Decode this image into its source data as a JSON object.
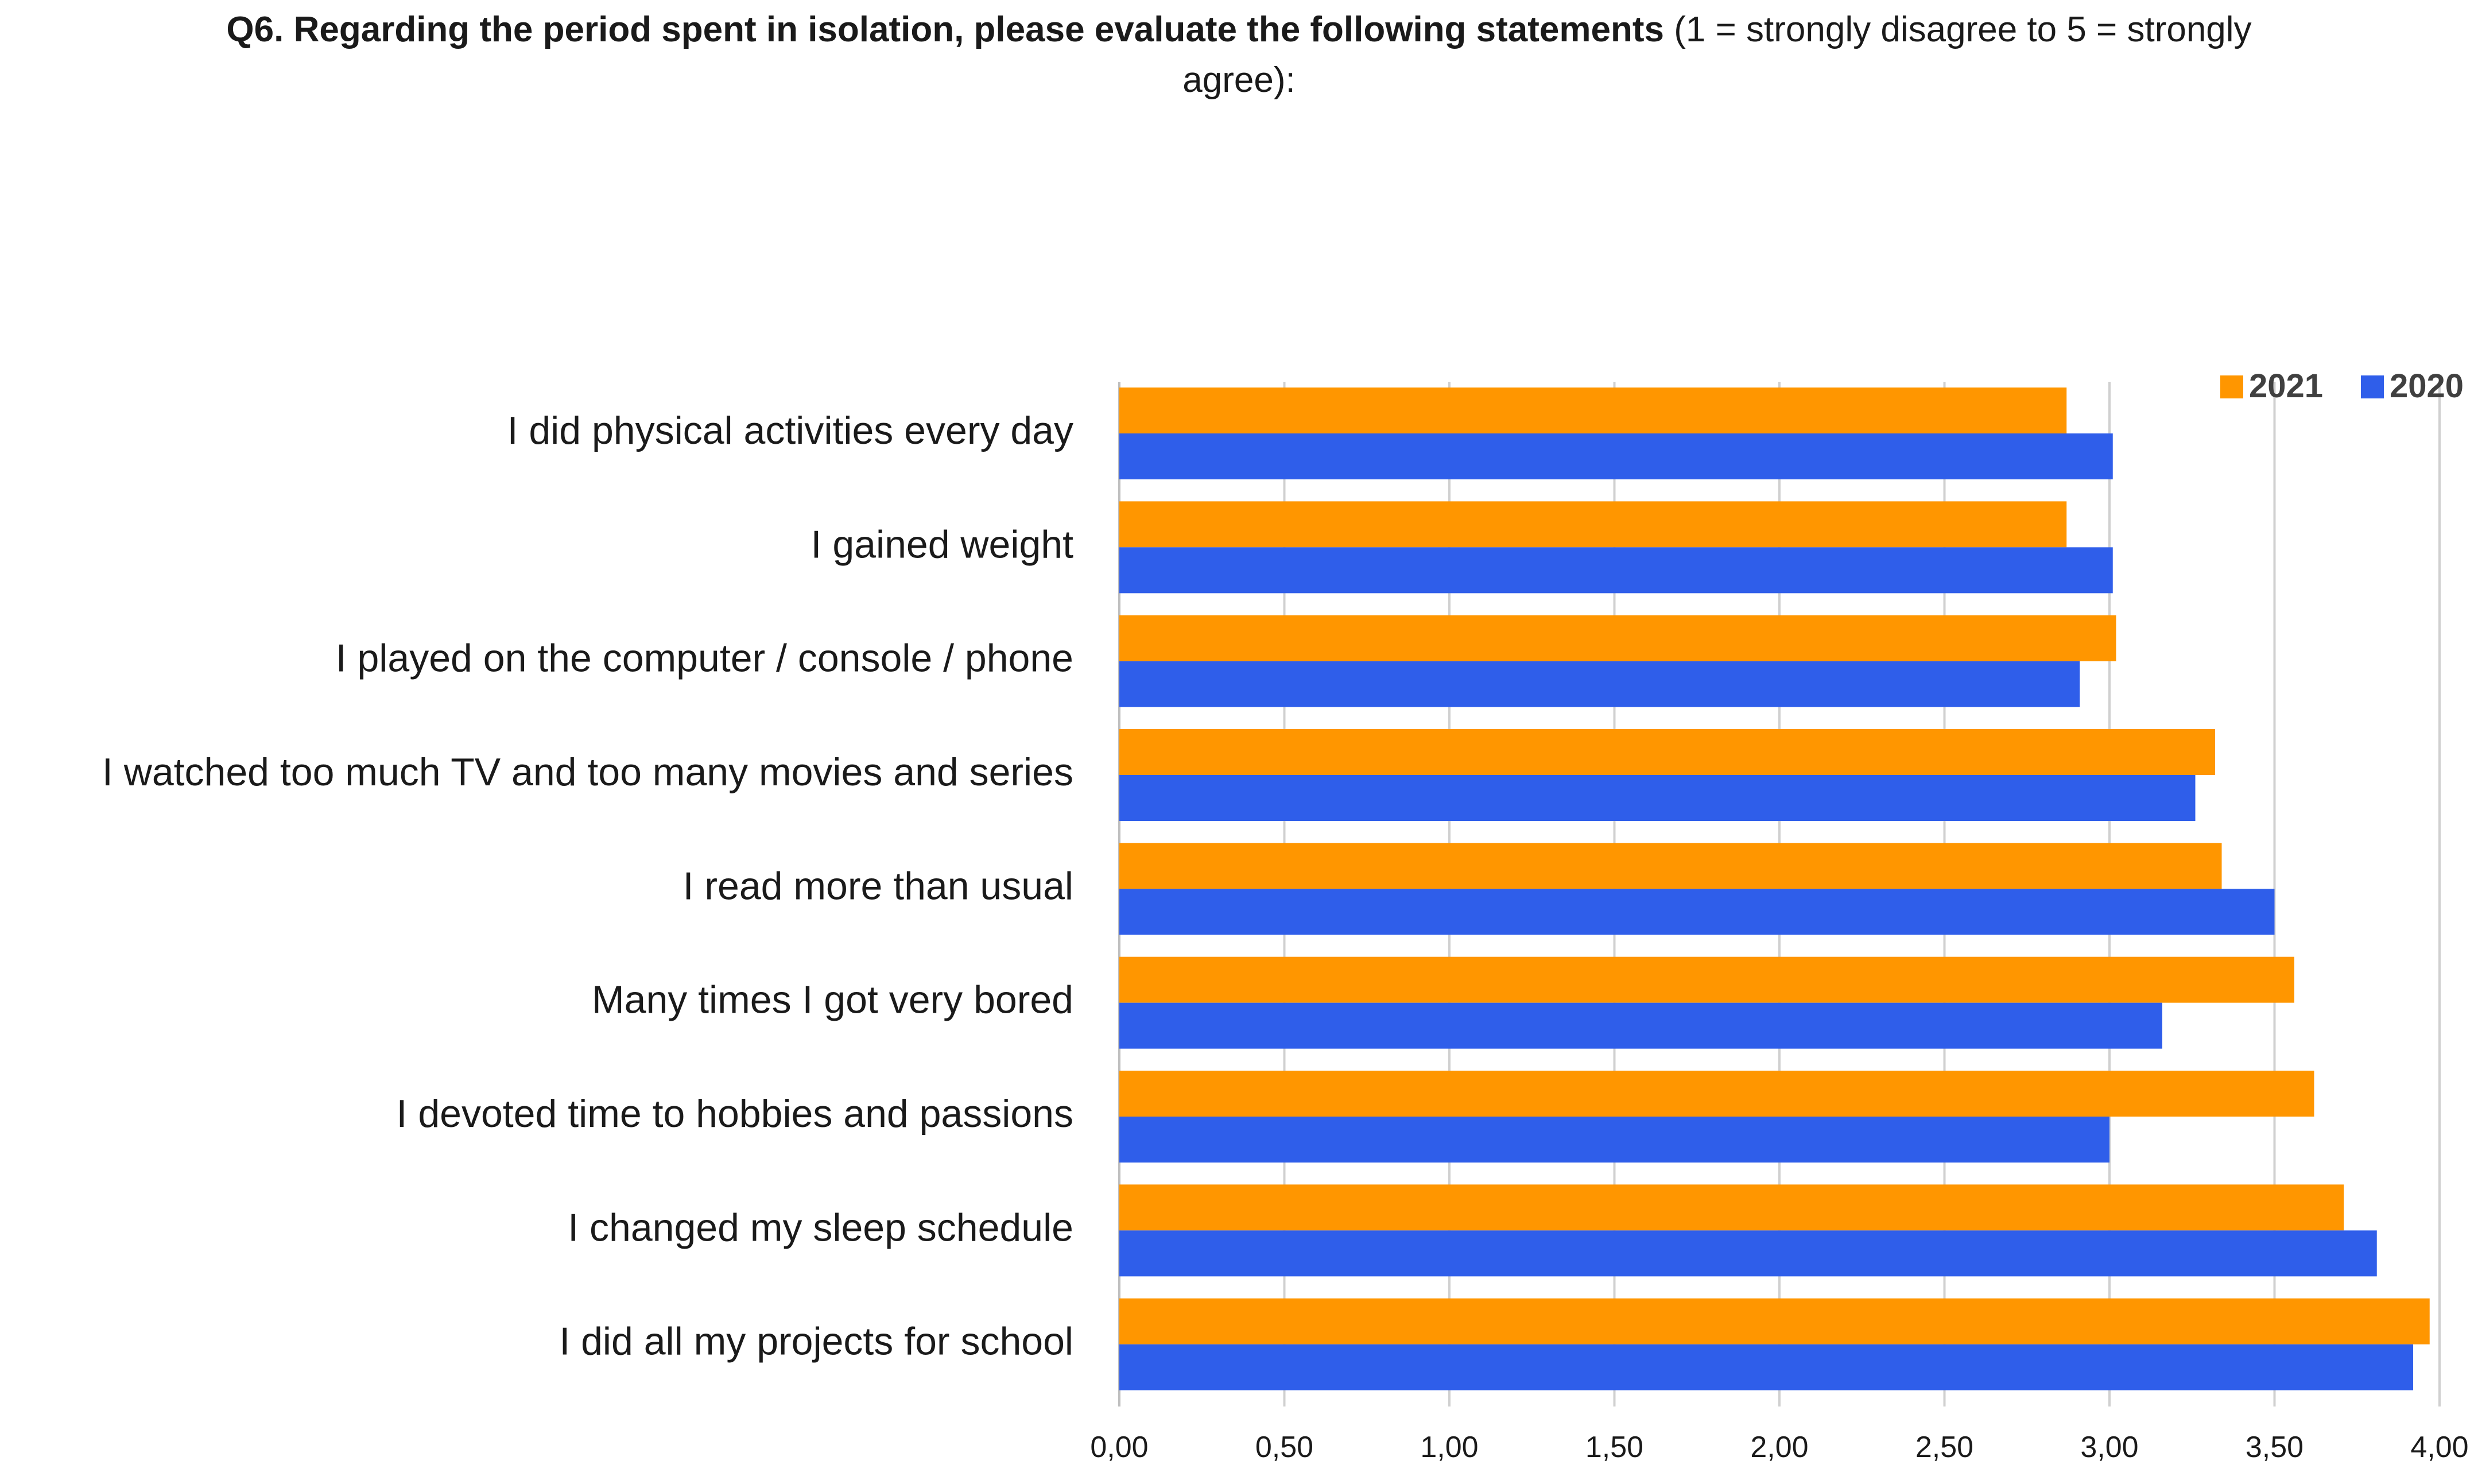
{
  "title": {
    "bold": "Q6. Regarding the period spent in isolation, please evaluate the following statements",
    "normal": " (1 = strongly disagree to 5 = strongly agree):"
  },
  "chart_data": {
    "type": "bar",
    "orientation": "horizontal",
    "title": "Q6. Regarding the period spent in isolation, please evaluate the following statements (1 = strongly disagree to 5 = strongly agree):",
    "xlabel": "",
    "ylabel": "",
    "xlim": [
      0,
      4
    ],
    "xticks": [
      "0,00",
      "0,50",
      "1,00",
      "1,50",
      "2,00",
      "2,50",
      "3,00",
      "3,50",
      "4,00"
    ],
    "grid": "vertical",
    "legend_position": "top-right",
    "categories": [
      "I did physical activities every day",
      "I gained weight",
      "I played on the computer / console / phone",
      "I watched too much TV and too many movies and series",
      "I read more than usual",
      "Many times I got very bored",
      "I devoted time to hobbies and passions",
      "I changed my sleep schedule",
      "I did all my projects for school"
    ],
    "series": [
      {
        "name": "2021",
        "color": "#FF9600",
        "values": [
          2.87,
          2.87,
          3.02,
          3.32,
          3.34,
          3.56,
          3.62,
          3.71,
          3.97
        ]
      },
      {
        "name": "2020",
        "color": "#2F5EEA",
        "values": [
          3.01,
          3.01,
          2.91,
          3.26,
          3.5,
          3.16,
          3.0,
          3.81,
          3.92
        ]
      }
    ]
  }
}
